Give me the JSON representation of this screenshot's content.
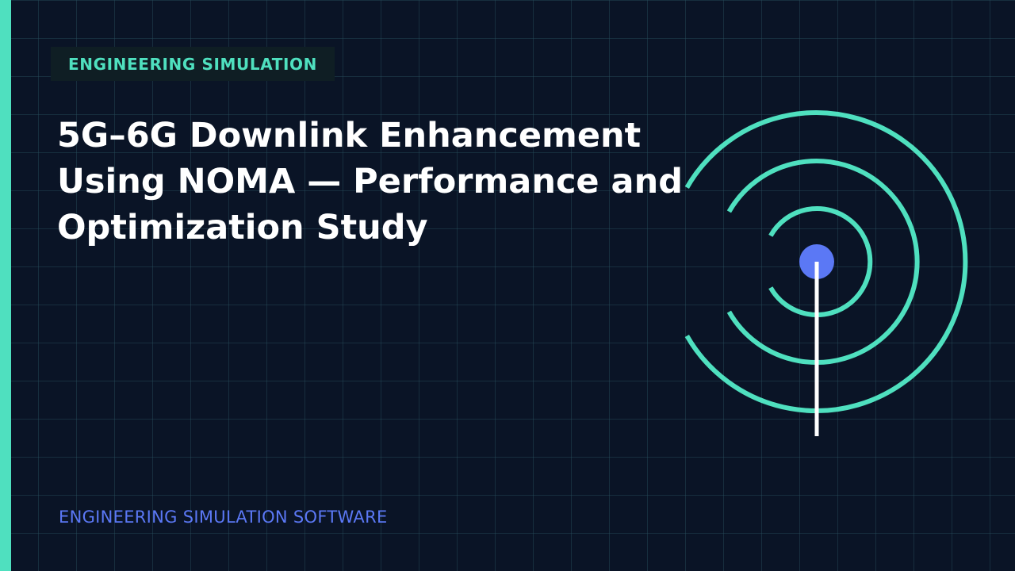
{
  "slide": {
    "category_tag": "ENGINEERING SIMULATION",
    "title": "5G–6G Downlink Enhancement Using NOMA — Performance and Optimization Study",
    "footer_label": "ENGINEERING SIMULATION SOFTWARE"
  },
  "graphic": {
    "icon": "antenna-signal-icon"
  },
  "colors": {
    "background": "#0a1426",
    "accent_teal": "#4fe0bf",
    "accent_blue": "#5b78f5",
    "title_text": "#ffffff"
  }
}
